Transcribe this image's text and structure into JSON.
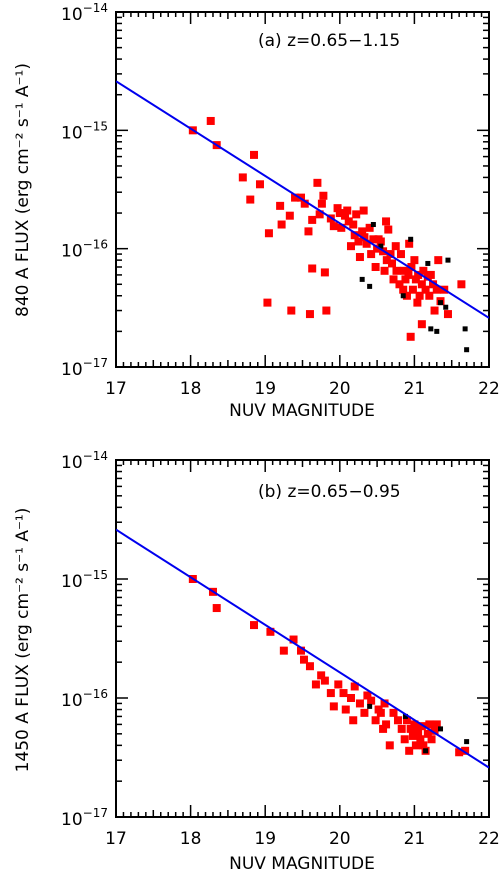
{
  "colors": {
    "fit_line": "#0000ee",
    "red_points": "#ff0000",
    "black_points": "#000000",
    "axes": "#000000"
  },
  "chart_data": [
    {
      "type": "scatter",
      "panel": "a",
      "annotation": "(a)  z=0.65−1.15",
      "xlabel": "NUV MAGNITUDE",
      "ylabel": "840 A FLUX (erg cm⁻² s⁻¹ A⁻¹)",
      "xlim": [
        17,
        22
      ],
      "ylim": [
        1e-17,
        1e-14
      ],
      "yscale": "log",
      "x_ticks": [
        "17",
        "18",
        "19",
        "20",
        "21",
        "22"
      ],
      "y_ticks": [
        {
          "mantissa": "10",
          "exp": "−14",
          "value": 1e-14
        },
        {
          "mantissa": "10",
          "exp": "−15",
          "value": 1e-15
        },
        {
          "mantissa": "10",
          "exp": "−16",
          "value": 1e-16
        },
        {
          "mantissa": "10",
          "exp": "−17",
          "value": 1e-17
        }
      ],
      "fit_line": [
        [
          17.0,
          2.6e-15
        ],
        [
          22.0,
          2.6e-17
        ]
      ],
      "series": [
        {
          "color": "red",
          "points": [
            [
              18.03,
              1e-15
            ],
            [
              18.27,
              1.2e-15
            ],
            [
              18.35,
              7.5e-16
            ],
            [
              18.7,
              4e-16
            ],
            [
              18.85,
              6.2e-16
            ],
            [
              18.8,
              2.6e-16
            ],
            [
              18.93,
              3.5e-16
            ],
            [
              19.05,
              1.35e-16
            ],
            [
              19.03,
              3.5e-17
            ],
            [
              19.2,
              2.3e-16
            ],
            [
              19.22,
              1.6e-16
            ],
            [
              19.33,
              1.9e-16
            ],
            [
              19.35,
              3e-17
            ],
            [
              19.4,
              2.7e-16
            ],
            [
              19.48,
              2.7e-16
            ],
            [
              19.53,
              2.4e-16
            ],
            [
              19.58,
              1.4e-16
            ],
            [
              19.6,
              2.8e-17
            ],
            [
              19.63,
              1.75e-16
            ],
            [
              19.63,
              6.8e-17
            ],
            [
              19.7,
              3.6e-16
            ],
            [
              19.73,
              1.95e-16
            ],
            [
              19.76,
              2.4e-16
            ],
            [
              19.78,
              2.8e-16
            ],
            [
              19.8,
              6.3e-17
            ],
            [
              19.82,
              3e-17
            ],
            [
              19.88,
              1.8e-16
            ],
            [
              19.92,
              1.55e-16
            ],
            [
              19.97,
              2.2e-16
            ],
            [
              20.0,
              2e-16
            ],
            [
              20.02,
              1.5e-16
            ],
            [
              20.07,
              1.9e-16
            ],
            [
              20.1,
              2.1e-16
            ],
            [
              20.12,
              1.7e-16
            ],
            [
              20.15,
              1.05e-16
            ],
            [
              20.18,
              1.6e-16
            ],
            [
              20.2,
              1.3e-16
            ],
            [
              20.22,
              1.95e-16
            ],
            [
              20.25,
              1.15e-16
            ],
            [
              20.27,
              8.5e-17
            ],
            [
              20.3,
              1.4e-16
            ],
            [
              20.32,
              2.1e-16
            ],
            [
              20.33,
              1.25e-16
            ],
            [
              20.36,
              1.1e-16
            ],
            [
              20.4,
              1.5e-16
            ],
            [
              20.42,
              9e-17
            ],
            [
              20.45,
              1.2e-16
            ],
            [
              20.48,
              7e-17
            ],
            [
              20.5,
              1e-16
            ],
            [
              20.52,
              1.2e-16
            ],
            [
              20.55,
              1.15e-16
            ],
            [
              20.58,
              9.5e-17
            ],
            [
              20.6,
              6.5e-17
            ],
            [
              20.62,
              1.7e-16
            ],
            [
              20.63,
              8e-17
            ],
            [
              20.65,
              1.45e-16
            ],
            [
              20.68,
              9e-17
            ],
            [
              20.7,
              7.5e-17
            ],
            [
              20.72,
              5.5e-17
            ],
            [
              20.75,
              1.05e-16
            ],
            [
              20.76,
              6.5e-17
            ],
            [
              20.8,
              5e-17
            ],
            [
              20.82,
              9e-17
            ],
            [
              20.85,
              4.5e-17
            ],
            [
              20.86,
              6.5e-17
            ],
            [
              20.88,
              5.5e-17
            ],
            [
              20.9,
              4e-17
            ],
            [
              20.92,
              6e-17
            ],
            [
              20.93,
              1.1e-16
            ],
            [
              20.95,
              1.8e-17
            ],
            [
              20.96,
              7e-17
            ],
            [
              20.98,
              4.5e-17
            ],
            [
              21.0,
              8e-17
            ],
            [
              21.02,
              5.5e-17
            ],
            [
              21.04,
              3.5e-17
            ],
            [
              21.05,
              6e-17
            ],
            [
              21.07,
              4e-17
            ],
            [
              21.1,
              5e-17
            ],
            [
              21.1,
              2.3e-17
            ],
            [
              21.12,
              6.5e-17
            ],
            [
              21.15,
              4.5e-17
            ],
            [
              21.18,
              5.8e-17
            ],
            [
              21.2,
              4e-17
            ],
            [
              21.22,
              6e-17
            ],
            [
              21.25,
              5e-17
            ],
            [
              21.27,
              3e-17
            ],
            [
              21.3,
              4.5e-17
            ],
            [
              21.32,
              8e-17
            ],
            [
              21.35,
              3.6e-17
            ],
            [
              21.4,
              4.5e-17
            ],
            [
              21.45,
              2.8e-17
            ],
            [
              21.63,
              5e-17
            ]
          ]
        },
        {
          "color": "black",
          "points": [
            [
              20.3,
              5.5e-17
            ],
            [
              20.4,
              4.8e-17
            ],
            [
              20.45,
              1.6e-16
            ],
            [
              20.55,
              1.05e-16
            ],
            [
              20.85,
              4e-17
            ],
            [
              20.95,
              1.2e-16
            ],
            [
              21.18,
              7.5e-17
            ],
            [
              21.22,
              2.1e-17
            ],
            [
              21.3,
              2e-17
            ],
            [
              21.35,
              3.5e-17
            ],
            [
              21.42,
              3.2e-17
            ],
            [
              21.45,
              8e-17
            ],
            [
              21.68,
              2.1e-17
            ],
            [
              21.7,
              1.4e-17
            ]
          ]
        }
      ]
    },
    {
      "type": "scatter",
      "panel": "b",
      "annotation": "(b)  z=0.65−0.95",
      "xlabel": "NUV MAGNITUDE",
      "ylabel": "1450 A FLUX (erg cm⁻² s⁻¹ A⁻¹)",
      "xlim": [
        17,
        22
      ],
      "ylim": [
        1e-17,
        1e-14
      ],
      "yscale": "log",
      "x_ticks": [
        "17",
        "18",
        "19",
        "20",
        "21",
        "22"
      ],
      "y_ticks": [
        {
          "mantissa": "10",
          "exp": "−14",
          "value": 1e-14
        },
        {
          "mantissa": "10",
          "exp": "−15",
          "value": 1e-15
        },
        {
          "mantissa": "10",
          "exp": "−16",
          "value": 1e-16
        },
        {
          "mantissa": "10",
          "exp": "−17",
          "value": 1e-17
        }
      ],
      "fit_line": [
        [
          17.0,
          2.6e-15
        ],
        [
          22.0,
          2.6e-17
        ]
      ],
      "series": [
        {
          "color": "red",
          "points": [
            [
              18.03,
              1e-15
            ],
            [
              18.3,
              7.8e-16
            ],
            [
              18.35,
              5.7e-16
            ],
            [
              18.85,
              4.1e-16
            ],
            [
              19.07,
              3.6e-16
            ],
            [
              19.25,
              2.5e-16
            ],
            [
              19.38,
              3.1e-16
            ],
            [
              19.48,
              2.5e-16
            ],
            [
              19.52,
              2.1e-16
            ],
            [
              19.6,
              1.85e-16
            ],
            [
              19.68,
              1.3e-16
            ],
            [
              19.75,
              1.55e-16
            ],
            [
              19.8,
              1.4e-16
            ],
            [
              19.88,
              1.1e-16
            ],
            [
              19.92,
              8.5e-17
            ],
            [
              19.98,
              1.3e-16
            ],
            [
              20.05,
              1.1e-16
            ],
            [
              20.08,
              8e-17
            ],
            [
              20.15,
              1e-16
            ],
            [
              20.18,
              6.5e-17
            ],
            [
              20.2,
              1.25e-16
            ],
            [
              20.27,
              9e-17
            ],
            [
              20.33,
              7.5e-17
            ],
            [
              20.37,
              1.05e-16
            ],
            [
              20.42,
              9.5e-17
            ],
            [
              20.48,
              6.5e-17
            ],
            [
              20.52,
              8e-17
            ],
            [
              20.55,
              7.5e-17
            ],
            [
              20.58,
              5.5e-17
            ],
            [
              20.6,
              9e-17
            ],
            [
              20.62,
              6e-17
            ],
            [
              20.67,
              4e-17
            ],
            [
              20.72,
              7.5e-17
            ],
            [
              20.78,
              6.5e-17
            ],
            [
              20.83,
              5.5e-17
            ],
            [
              20.87,
              4.5e-17
            ],
            [
              20.9,
              6.5e-17
            ],
            [
              20.93,
              3.6e-17
            ],
            [
              20.95,
              5.5e-17
            ],
            [
              20.98,
              4.8e-17
            ],
            [
              21.0,
              6e-17
            ],
            [
              21.02,
              4e-17
            ],
            [
              21.05,
              5.2e-17
            ],
            [
              21.08,
              4.5e-17
            ],
            [
              21.1,
              5.8e-17
            ],
            [
              21.12,
              4e-17
            ],
            [
              21.15,
              3.6e-17
            ],
            [
              21.18,
              5e-17
            ],
            [
              21.2,
              6e-17
            ],
            [
              21.23,
              4.5e-17
            ],
            [
              21.27,
              5.3e-17
            ],
            [
              21.3,
              6e-17
            ],
            [
              21.6,
              3.5e-17
            ],
            [
              21.68,
              3.6e-17
            ]
          ]
        },
        {
          "color": "black",
          "points": [
            [
              20.4,
              8.5e-17
            ],
            [
              20.88,
              7e-17
            ],
            [
              21.15,
              3.6e-17
            ],
            [
              21.35,
              5.5e-17
            ],
            [
              21.7,
              4.3e-17
            ]
          ]
        }
      ]
    }
  ]
}
